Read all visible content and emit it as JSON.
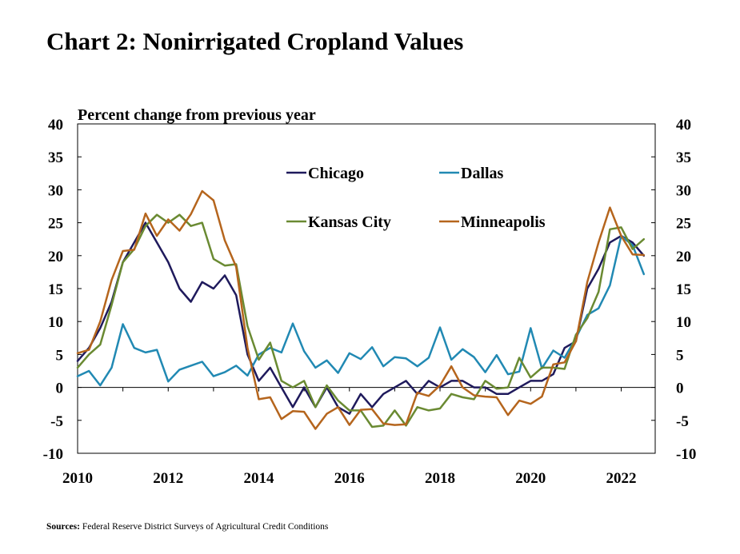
{
  "chart_data": {
    "type": "line",
    "title": "Chart 2: Nonirrigated Cropland Values",
    "ylabel": "Percent change from previous year",
    "xlabel": "",
    "ylim": [
      -10,
      40
    ],
    "yticks": [
      -10,
      -5,
      0,
      5,
      10,
      15,
      20,
      25,
      30,
      35,
      40
    ],
    "xlim": [
      2010,
      2022.75
    ],
    "xticks": [
      2010,
      2012,
      2014,
      2016,
      2018,
      2020,
      2022
    ],
    "legend_position": "inside-top",
    "colors": {
      "Chicago": "#1f1a5c",
      "Dallas": "#2189b3",
      "Kansas City": "#6a8a32",
      "Minneapolis": "#b5651d"
    },
    "series": [
      {
        "name": "Chicago",
        "start": 2010,
        "step": 0.25,
        "values": [
          4,
          6,
          9,
          13,
          19,
          22,
          25,
          22,
          19,
          15,
          13,
          16,
          15,
          17,
          14,
          5,
          1,
          3,
          0,
          -3,
          0,
          -3,
          0,
          -3,
          -4,
          -1,
          -3,
          -1,
          0,
          1,
          -1,
          1,
          0,
          1,
          1,
          0,
          0,
          -1,
          -1,
          0,
          1,
          1,
          2,
          6,
          7,
          15,
          18,
          22,
          23,
          22,
          20
        ]
      },
      {
        "name": "Dallas",
        "start": 2010,
        "step": 0.25,
        "values": [
          1.7,
          2.5,
          0.3,
          3,
          9.6,
          6,
          5.3,
          5.7,
          0.9,
          2.7,
          3.3,
          3.9,
          1.7,
          2.3,
          3.3,
          1.8,
          5,
          6,
          5.3,
          9.7,
          5.5,
          3,
          4.1,
          2.2,
          5.2,
          4.3,
          6.1,
          3.2,
          4.6,
          4.4,
          3.2,
          4.5,
          9.1,
          4.2,
          5.8,
          4.6,
          2.3,
          4.9,
          2,
          2.4,
          9,
          2.9,
          5.6,
          4.5,
          7.5,
          11,
          12,
          15.5,
          23,
          21.6,
          17.2
        ]
      },
      {
        "name": "Kansas City",
        "start": 2010,
        "step": 0.25,
        "values": [
          3,
          5,
          6.5,
          12.5,
          19,
          21,
          24.5,
          26.2,
          25,
          26.2,
          24.5,
          25,
          19.5,
          18.5,
          18.7,
          9.3,
          4.2,
          6.8,
          1,
          0,
          1,
          -3,
          0.3,
          -2,
          -3.5,
          -3.5,
          -6,
          -5.8,
          -3.5,
          -5.8,
          -3,
          -3.5,
          -3.2,
          -1,
          -1.5,
          -1.8,
          1,
          -0.2,
          0,
          4.5,
          1.5,
          3,
          3,
          2.8,
          8,
          10.5,
          14.5,
          24,
          24.3,
          21,
          22.5
        ]
      },
      {
        "name": "Minneapolis",
        "start": 2010,
        "step": 0.25,
        "values": [
          5.2,
          5.7,
          10,
          16.3,
          20.7,
          20.9,
          26.4,
          23,
          25.5,
          23.8,
          26.3,
          29.8,
          28.4,
          22.3,
          18.3,
          6,
          -1.8,
          -1.5,
          -4.8,
          -3.6,
          -3.7,
          -6.3,
          -4,
          -3,
          -5.7,
          -3.4,
          -3.3,
          -5.5,
          -5.7,
          -5.6,
          -0.8,
          -1.3,
          0.3,
          3.2,
          0,
          -1.2,
          -1.4,
          -1.5,
          -4.2,
          -2,
          -2.5,
          -1.4,
          3.5,
          3.8,
          7,
          16,
          22,
          27.3,
          23,
          20.2,
          20.1
        ]
      }
    ]
  },
  "source": {
    "label": "Sources:",
    "text": "Federal Reserve District Surveys of Agricultural Credit Conditions"
  }
}
